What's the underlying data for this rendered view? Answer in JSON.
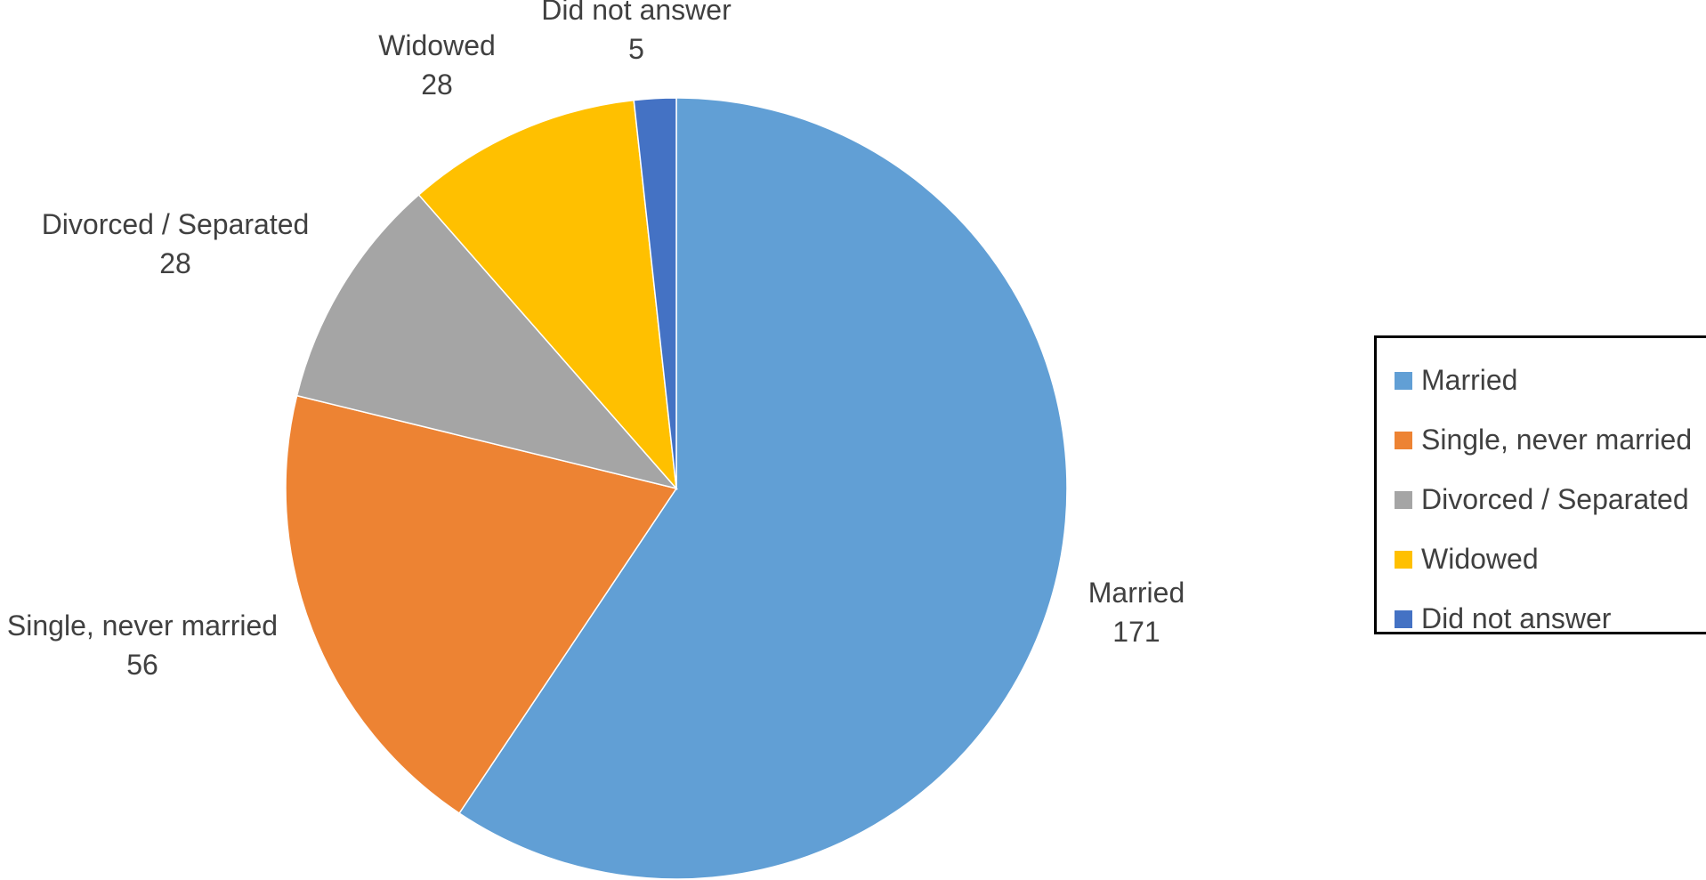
{
  "chart_data": {
    "type": "pie",
    "title": "",
    "categories": [
      "Married",
      "Single, never married",
      "Divorced / Separated",
      "Widowed",
      "Did not answer"
    ],
    "values": [
      171,
      56,
      28,
      28,
      5
    ],
    "colors": [
      "#619FD5",
      "#ED8333",
      "#A5A5A5",
      "#FFC000",
      "#4472C4"
    ],
    "start_angle_deg": 0,
    "direction": "clockwise",
    "data_labels": [
      {
        "category": "Married",
        "value": "171"
      },
      {
        "category": "Single, never married",
        "value": "56"
      },
      {
        "category": "Divorced / Separated",
        "value": "28"
      },
      {
        "category": "Widowed",
        "value": "28"
      },
      {
        "category": "Did not answer",
        "value": "5"
      }
    ],
    "legend": {
      "placement": "right",
      "entries": [
        "Married",
        "Single, never married",
        "Divorced / Separated",
        "Widowed",
        "Did not answer"
      ]
    }
  }
}
